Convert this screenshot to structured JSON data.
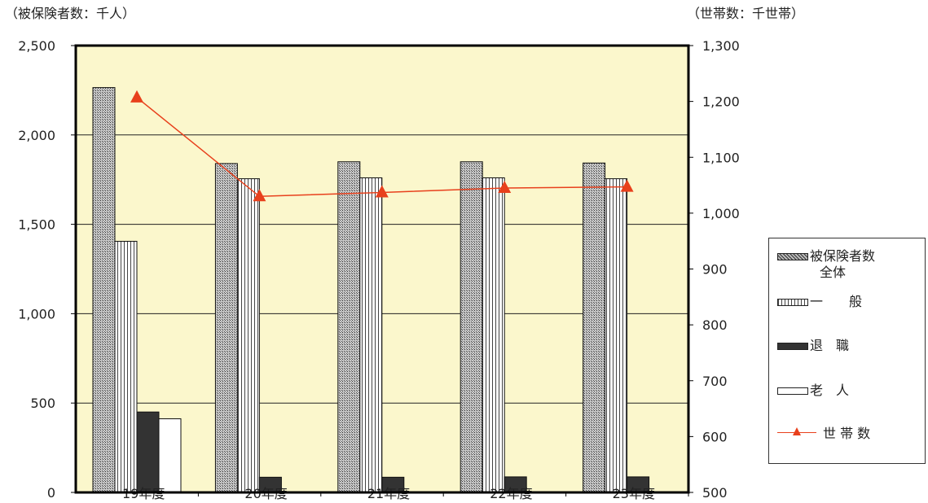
{
  "axis_titles": {
    "left": "（被保険者数：千人）",
    "right": "（世帯数：千世帯）"
  },
  "colors": {
    "plot_background": "#fbf7cc",
    "line": "#e8401c",
    "marker": "#e8401c"
  },
  "chart_data": {
    "type": "bar",
    "categories": [
      "19年度",
      "20年度",
      "21年度",
      "22年度",
      "23年度"
    ],
    "series": [
      {
        "name": "被保険者数全体",
        "values": [
          2265,
          1840,
          1850,
          1850,
          1843
        ],
        "axis": "left",
        "pattern": "crosshatch"
      },
      {
        "name": "一　般",
        "values": [
          1405,
          1755,
          1760,
          1760,
          1755
        ],
        "axis": "left",
        "pattern": "vertical-stripes"
      },
      {
        "name": "退 職",
        "values": [
          450,
          85,
          85,
          87,
          87
        ],
        "axis": "left",
        "pattern": "solid-dark"
      },
      {
        "name": "老 人",
        "values": [
          412,
          null,
          null,
          null,
          null
        ],
        "axis": "left",
        "pattern": "white"
      },
      {
        "name": "世 帯 数",
        "values": [
          1207,
          1030,
          1037,
          1045,
          1047
        ],
        "axis": "right",
        "type": "line",
        "marker": "triangle"
      }
    ],
    "yleft": {
      "lim": [
        0,
        2500
      ],
      "ticks": [
        0,
        500,
        1000,
        1500,
        2000,
        2500
      ],
      "tick_labels": [
        "0",
        "500",
        "1,000",
        "1,500",
        "2,000",
        "2,500"
      ]
    },
    "yright": {
      "lim": [
        500,
        1300
      ],
      "ticks": [
        500,
        600,
        700,
        800,
        900,
        1000,
        1100,
        1200,
        1300
      ],
      "tick_labels": [
        "500",
        "600",
        "700",
        "800",
        "900",
        "1,000",
        "1,100",
        "1,200",
        "1,300"
      ]
    },
    "grid": true,
    "legend_position": "right"
  },
  "legend": [
    {
      "label_lines": [
        "被保険者数",
        "全体"
      ],
      "swatch": "crosshatch"
    },
    {
      "label_lines": [
        "一　　般"
      ],
      "swatch": "vertical-stripes"
    },
    {
      "label_lines": [
        "退　職"
      ],
      "swatch": "solid-dark"
    },
    {
      "label_lines": [
        "老　人"
      ],
      "swatch": "white"
    },
    {
      "label_lines": [
        "世 帯 数"
      ],
      "swatch": "line-triangle"
    }
  ]
}
